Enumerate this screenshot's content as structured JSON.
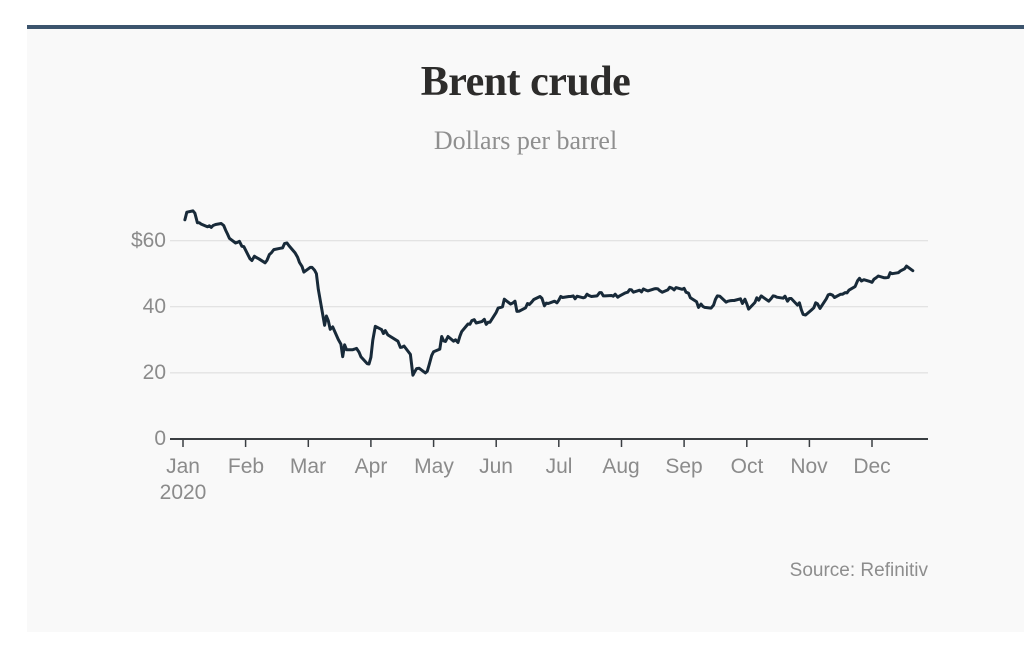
{
  "page": {
    "background": "#ffffff",
    "card_background": "#f9f9f9",
    "top_bar_color": "#3c546d"
  },
  "chart_data": {
    "type": "line",
    "title": "Brent crude",
    "subtitle": "Dollars per barrel",
    "source": "Source: Refinitiv",
    "x_axis": {
      "year_label": "2020",
      "months": [
        "Jan",
        "Feb",
        "Mar",
        "Apr",
        "May",
        "Jun",
        "Jul",
        "Aug",
        "Sep",
        "Oct",
        "Nov",
        "Dec"
      ]
    },
    "y_axis": {
      "ticks": [
        {
          "value": 60,
          "label": "$60"
        },
        {
          "value": 40,
          "label": "40"
        },
        {
          "value": 20,
          "label": "20"
        },
        {
          "value": 0,
          "label": "0"
        }
      ]
    },
    "ylim": [
      0,
      74
    ],
    "xlim_months": [
      0,
      11.9
    ],
    "grid": "horizontal",
    "legend": "none",
    "line_color": "#182a39",
    "axis_color": "#3a3e42",
    "gridline_color": "#dcdcdc",
    "series": [
      {
        "name": "Brent crude price, dollars per barrel",
        "points": [
          [
            0.03,
            66.3
          ],
          [
            0.06,
            68.6
          ],
          [
            0.16,
            69.0
          ],
          [
            0.19,
            68.3
          ],
          [
            0.23,
            65.4
          ],
          [
            0.26,
            65.4
          ],
          [
            0.29,
            65.0
          ],
          [
            0.39,
            64.2
          ],
          [
            0.42,
            64.5
          ],
          [
            0.45,
            64.0
          ],
          [
            0.48,
            64.6
          ],
          [
            0.52,
            64.9
          ],
          [
            0.61,
            65.2
          ],
          [
            0.65,
            64.6
          ],
          [
            0.68,
            63.2
          ],
          [
            0.71,
            62.0
          ],
          [
            0.74,
            60.7
          ],
          [
            0.84,
            59.3
          ],
          [
            0.87,
            59.5
          ],
          [
            0.9,
            59.8
          ],
          [
            0.94,
            58.3
          ],
          [
            0.97,
            58.2
          ],
          [
            1.07,
            54.5
          ],
          [
            1.1,
            54.0
          ],
          [
            1.14,
            55.3
          ],
          [
            1.17,
            54.9
          ],
          [
            1.21,
            54.5
          ],
          [
            1.31,
            53.3
          ],
          [
            1.34,
            54.0
          ],
          [
            1.38,
            55.8
          ],
          [
            1.41,
            56.3
          ],
          [
            1.45,
            57.3
          ],
          [
            1.55,
            57.7
          ],
          [
            1.59,
            57.8
          ],
          [
            1.62,
            59.1
          ],
          [
            1.66,
            59.3
          ],
          [
            1.69,
            58.5
          ],
          [
            1.79,
            56.3
          ],
          [
            1.83,
            55.0
          ],
          [
            1.86,
            53.4
          ],
          [
            1.9,
            52.2
          ],
          [
            1.93,
            50.5
          ],
          [
            2.03,
            51.9
          ],
          [
            2.06,
            51.9
          ],
          [
            2.1,
            51.1
          ],
          [
            2.13,
            50.0
          ],
          [
            2.16,
            45.3
          ],
          [
            2.26,
            34.4
          ],
          [
            2.29,
            37.2
          ],
          [
            2.32,
            35.8
          ],
          [
            2.35,
            33.2
          ],
          [
            2.39,
            33.9
          ],
          [
            2.48,
            30.1
          ],
          [
            2.52,
            28.7
          ],
          [
            2.55,
            24.9
          ],
          [
            2.58,
            28.5
          ],
          [
            2.61,
            27.0
          ],
          [
            2.71,
            27.0
          ],
          [
            2.74,
            27.2
          ],
          [
            2.77,
            27.4
          ],
          [
            2.81,
            26.3
          ],
          [
            2.84,
            24.9
          ],
          [
            2.94,
            22.8
          ],
          [
            2.97,
            22.7
          ],
          [
            3.0,
            24.7
          ],
          [
            3.03,
            29.9
          ],
          [
            3.07,
            34.1
          ],
          [
            3.17,
            33.1
          ],
          [
            3.2,
            31.9
          ],
          [
            3.23,
            32.8
          ],
          [
            3.27,
            31.5
          ],
          [
            3.43,
            29.6
          ],
          [
            3.47,
            27.7
          ],
          [
            3.5,
            27.8
          ],
          [
            3.53,
            28.1
          ],
          [
            3.63,
            25.6
          ],
          [
            3.67,
            19.3
          ],
          [
            3.7,
            20.4
          ],
          [
            3.73,
            21.3
          ],
          [
            3.77,
            21.4
          ],
          [
            3.87,
            20.0
          ],
          [
            3.9,
            20.5
          ],
          [
            3.93,
            22.5
          ],
          [
            3.97,
            25.3
          ],
          [
            4.0,
            26.4
          ],
          [
            4.1,
            27.2
          ],
          [
            4.13,
            31.0
          ],
          [
            4.16,
            29.7
          ],
          [
            4.19,
            29.5
          ],
          [
            4.23,
            31.0
          ],
          [
            4.32,
            29.6
          ],
          [
            4.35,
            30.0
          ],
          [
            4.39,
            29.2
          ],
          [
            4.42,
            31.1
          ],
          [
            4.45,
            32.5
          ],
          [
            4.55,
            34.8
          ],
          [
            4.58,
            34.7
          ],
          [
            4.61,
            35.8
          ],
          [
            4.65,
            36.1
          ],
          [
            4.68,
            35.1
          ],
          [
            4.77,
            35.5
          ],
          [
            4.81,
            36.2
          ],
          [
            4.84,
            34.7
          ],
          [
            4.87,
            35.3
          ],
          [
            4.9,
            35.3
          ],
          [
            5.0,
            38.3
          ],
          [
            5.03,
            39.6
          ],
          [
            5.07,
            39.8
          ],
          [
            5.1,
            40.0
          ],
          [
            5.13,
            42.3
          ],
          [
            5.23,
            40.8
          ],
          [
            5.27,
            41.2
          ],
          [
            5.3,
            41.7
          ],
          [
            5.33,
            38.6
          ],
          [
            5.37,
            38.7
          ],
          [
            5.47,
            39.7
          ],
          [
            5.5,
            41.0
          ],
          [
            5.53,
            40.7
          ],
          [
            5.57,
            41.5
          ],
          [
            5.6,
            42.2
          ],
          [
            5.7,
            43.1
          ],
          [
            5.73,
            42.6
          ],
          [
            5.77,
            40.3
          ],
          [
            5.8,
            41.1
          ],
          [
            5.83,
            41.0
          ],
          [
            5.93,
            41.7
          ],
          [
            5.97,
            41.2
          ],
          [
            6.0,
            42.0
          ],
          [
            6.03,
            43.1
          ],
          [
            6.06,
            42.8
          ],
          [
            6.16,
            43.1
          ],
          [
            6.19,
            43.1
          ],
          [
            6.23,
            43.3
          ],
          [
            6.26,
            42.4
          ],
          [
            6.29,
            43.2
          ],
          [
            6.39,
            42.7
          ],
          [
            6.42,
            42.9
          ],
          [
            6.45,
            43.8
          ],
          [
            6.48,
            43.4
          ],
          [
            6.52,
            43.1
          ],
          [
            6.61,
            43.3
          ],
          [
            6.65,
            44.3
          ],
          [
            6.68,
            44.3
          ],
          [
            6.71,
            43.3
          ],
          [
            6.74,
            43.3
          ],
          [
            6.84,
            43.4
          ],
          [
            6.87,
            43.2
          ],
          [
            6.9,
            43.8
          ],
          [
            6.94,
            42.9
          ],
          [
            6.97,
            43.3
          ],
          [
            7.06,
            44.2
          ],
          [
            7.1,
            44.4
          ],
          [
            7.13,
            45.2
          ],
          [
            7.16,
            45.1
          ],
          [
            7.19,
            44.4
          ],
          [
            7.29,
            45.0
          ],
          [
            7.32,
            44.5
          ],
          [
            7.35,
            45.4
          ],
          [
            7.39,
            45.0
          ],
          [
            7.42,
            44.8
          ],
          [
            7.52,
            45.4
          ],
          [
            7.55,
            45.5
          ],
          [
            7.58,
            45.4
          ],
          [
            7.61,
            44.9
          ],
          [
            7.65,
            44.4
          ],
          [
            7.74,
            45.1
          ],
          [
            7.77,
            45.9
          ],
          [
            7.81,
            45.6
          ],
          [
            7.84,
            45.1
          ],
          [
            7.87,
            45.8
          ],
          [
            7.97,
            45.3
          ],
          [
            8.0,
            45.6
          ],
          [
            8.03,
            44.4
          ],
          [
            8.07,
            44.1
          ],
          [
            8.1,
            42.7
          ],
          [
            8.2,
            41.5
          ],
          [
            8.23,
            39.8
          ],
          [
            8.27,
            40.8
          ],
          [
            8.3,
            40.1
          ],
          [
            8.33,
            39.8
          ],
          [
            8.43,
            39.6
          ],
          [
            8.47,
            40.5
          ],
          [
            8.5,
            42.2
          ],
          [
            8.53,
            43.3
          ],
          [
            8.57,
            43.2
          ],
          [
            8.67,
            41.4
          ],
          [
            8.7,
            41.7
          ],
          [
            8.73,
            41.8
          ],
          [
            8.77,
            41.9
          ],
          [
            8.8,
            41.9
          ],
          [
            8.9,
            42.4
          ],
          [
            8.93,
            41.0
          ],
          [
            8.97,
            42.3
          ],
          [
            9.0,
            40.9
          ],
          [
            9.03,
            39.3
          ],
          [
            9.13,
            41.3
          ],
          [
            9.16,
            42.7
          ],
          [
            9.19,
            42.0
          ],
          [
            9.23,
            43.3
          ],
          [
            9.26,
            42.9
          ],
          [
            9.35,
            41.7
          ],
          [
            9.39,
            42.5
          ],
          [
            9.42,
            43.3
          ],
          [
            9.45,
            43.2
          ],
          [
            9.48,
            42.9
          ],
          [
            9.58,
            42.6
          ],
          [
            9.61,
            43.2
          ],
          [
            9.65,
            41.7
          ],
          [
            9.68,
            42.5
          ],
          [
            9.71,
            42.5
          ],
          [
            9.81,
            40.5
          ],
          [
            9.84,
            41.2
          ],
          [
            9.87,
            39.1
          ],
          [
            9.9,
            37.7
          ],
          [
            9.94,
            37.5
          ],
          [
            10.03,
            39.0
          ],
          [
            10.07,
            39.7
          ],
          [
            10.1,
            41.2
          ],
          [
            10.13,
            40.9
          ],
          [
            10.17,
            39.5
          ],
          [
            10.27,
            42.4
          ],
          [
            10.3,
            43.6
          ],
          [
            10.33,
            43.8
          ],
          [
            10.37,
            43.5
          ],
          [
            10.4,
            42.8
          ],
          [
            10.5,
            43.8
          ],
          [
            10.53,
            43.8
          ],
          [
            10.57,
            44.3
          ],
          [
            10.6,
            44.2
          ],
          [
            10.63,
            45.0
          ],
          [
            10.73,
            46.1
          ],
          [
            10.77,
            47.9
          ],
          [
            10.8,
            48.6
          ],
          [
            10.83,
            47.8
          ],
          [
            10.87,
            48.2
          ],
          [
            10.97,
            47.6
          ],
          [
            11.0,
            47.4
          ],
          [
            11.03,
            48.3
          ],
          [
            11.06,
            48.7
          ],
          [
            11.1,
            49.3
          ],
          [
            11.19,
            48.8
          ],
          [
            11.23,
            48.8
          ],
          [
            11.26,
            48.9
          ],
          [
            11.29,
            50.3
          ],
          [
            11.32,
            50.0
          ],
          [
            11.42,
            50.3
          ],
          [
            11.45,
            50.8
          ],
          [
            11.48,
            51.1
          ],
          [
            11.52,
            51.5
          ],
          [
            11.55,
            52.3
          ],
          [
            11.65,
            50.9
          ]
        ]
      }
    ]
  }
}
